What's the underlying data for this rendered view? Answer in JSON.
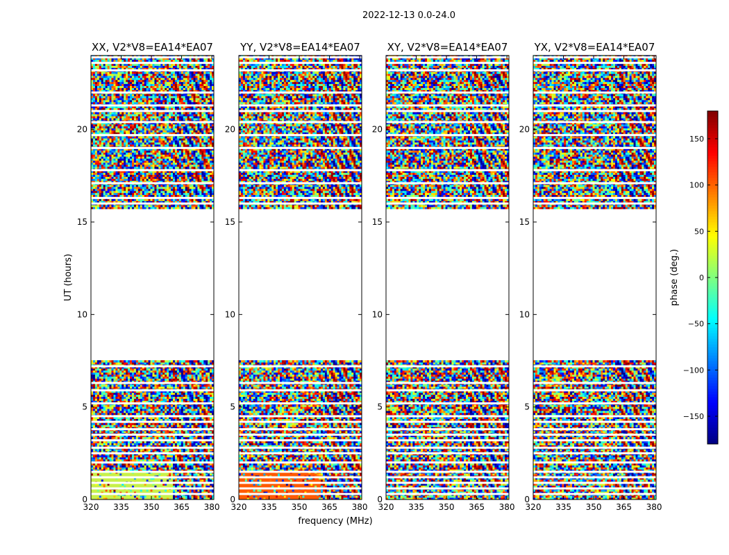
{
  "chart_data": {
    "type": "heatmap",
    "suptitle": "2022-12-13 0.0-24.0",
    "xlabel": "frequency (MHz)",
    "ylabel": "UT (hours)",
    "colorbar_label": "phase (deg.)",
    "xlim": [
      320,
      381
    ],
    "ylim": [
      0,
      24
    ],
    "xticks": [
      320,
      335,
      350,
      365,
      380
    ],
    "yticks": [
      0,
      5,
      10,
      15,
      20
    ],
    "clim": [
      -180,
      180
    ],
    "cbar_ticks": [
      -150,
      -100,
      -50,
      0,
      50,
      100,
      150
    ],
    "colormap": "jet",
    "gap_hours": [
      7.5,
      15.7
    ],
    "white_band_hours": [
      0.3,
      0.6,
      0.9,
      1.2,
      1.5,
      2.0,
      2.5,
      2.8,
      3.2,
      3.5,
      3.8,
      4.2,
      4.5,
      5.2,
      5.9,
      6.3,
      7.2,
      16.0,
      16.3,
      17.1,
      17.8,
      19.0,
      19.7,
      20.4,
      21.0,
      21.3,
      22.0,
      23.2,
      23.6,
      23.9
    ],
    "fringe_region_mhz": [
      360,
      381
    ],
    "panels": [
      {
        "title": "XX, V2*V8=EA14*EA07",
        "low_band_color": "#c8f04a",
        "low_band_hours": [
          0,
          1.5
        ]
      },
      {
        "title": "YY, V2*V8=EA14*EA07",
        "low_band_color": "#ff5a00",
        "low_band_hours": [
          0,
          1.5
        ]
      },
      {
        "title": "XY, V2*V8=EA14*EA07",
        "low_band_color": "",
        "low_band_hours": []
      },
      {
        "title": "YX, V2*V8=EA14*EA07",
        "low_band_color": "",
        "low_band_hours": []
      }
    ]
  }
}
